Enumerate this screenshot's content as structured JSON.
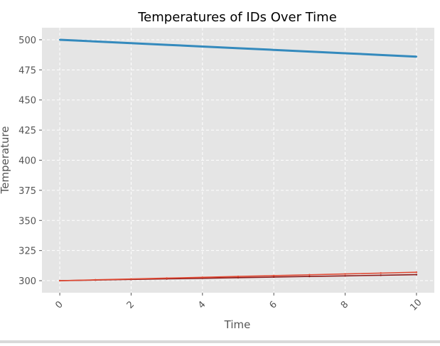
{
  "chart_data": {
    "type": "line",
    "title": "Temperatures of IDs Over Time",
    "xlabel": "Time",
    "ylabel": "Temperature",
    "xlim": [
      -0.5,
      10.5
    ],
    "ylim": [
      290,
      510
    ],
    "xticks": [
      0,
      2,
      4,
      6,
      8,
      10
    ],
    "yticks": [
      300,
      325,
      350,
      375,
      400,
      425,
      450,
      475,
      500
    ],
    "grid": true,
    "style": "ggplot",
    "series": [
      {
        "color": "#348abd",
        "x": [
          0,
          1,
          2,
          3,
          4,
          5,
          6,
          7,
          8,
          9,
          10
        ],
        "values": [
          500.0,
          498.6,
          497.2,
          495.8,
          494.4,
          493.0,
          491.6,
          490.2,
          488.8,
          487.4,
          486.0
        ]
      },
      {
        "color": "#8b1a1a",
        "x": [
          0,
          1,
          2,
          3,
          4,
          5,
          6,
          7,
          8,
          9,
          10
        ],
        "values": [
          300.0,
          300.5,
          301.0,
          301.5,
          302.0,
          302.5,
          303.0,
          303.5,
          304.0,
          304.5,
          305.0
        ]
      },
      {
        "color": "#e24a33",
        "x": [
          0,
          1,
          2,
          3,
          4,
          5,
          6,
          7,
          8,
          9,
          10
        ],
        "values": [
          300.0,
          300.7,
          301.4,
          302.1,
          302.8,
          303.5,
          304.2,
          304.9,
          305.6,
          306.3,
          307.0
        ]
      }
    ]
  }
}
